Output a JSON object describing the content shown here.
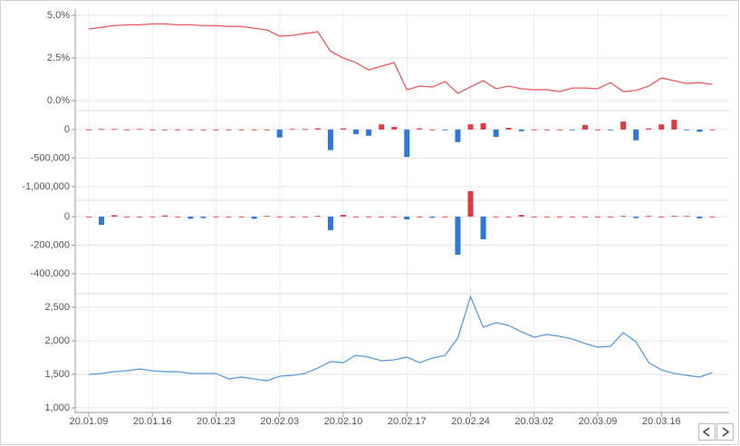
{
  "chart_data": [
    {
      "type": "line",
      "color": "#e8595c",
      "values": [
        4.2,
        4.3,
        4.4,
        4.45,
        4.45,
        4.5,
        4.5,
        4.45,
        4.45,
        4.4,
        4.4,
        4.35,
        4.35,
        4.25,
        4.15,
        3.78,
        3.83,
        3.94,
        4.04,
        2.9,
        2.5,
        2.23,
        1.8,
        2.02,
        2.23,
        0.64,
        0.85,
        0.8,
        1.12,
        0.43,
        0.8,
        1.17,
        0.7,
        0.85,
        0.7,
        0.64,
        0.64,
        0.53,
        0.74,
        0.74,
        0.7,
        1.06,
        0.53,
        0.6,
        0.85,
        1.33,
        1.17,
        1.0,
        1.06,
        0.95
      ],
      "ylim": [
        -0.5,
        5.0
      ],
      "yticks": [
        {
          "value": 0,
          "label": "0.0%"
        },
        {
          "value": 2.5,
          "label": "2.5%"
        },
        {
          "value": 5.0,
          "label": "5.0%"
        }
      ],
      "grid": true
    },
    {
      "type": "bar",
      "up_color": "#e03a3e",
      "down_color": "#2f78d6",
      "values": [
        0,
        10000,
        10000,
        0,
        10000,
        0,
        0,
        0,
        0,
        0,
        0,
        0,
        0,
        0,
        0,
        -140000,
        10000,
        10000,
        20000,
        -360000,
        20000,
        -80000,
        -110000,
        90000,
        45000,
        -480000,
        20000,
        0,
        -10000,
        -220000,
        90000,
        110000,
        -130000,
        30000,
        -30000,
        0,
        0,
        0,
        -10000,
        80000,
        0,
        -10000,
        140000,
        -190000,
        20000,
        90000,
        170000,
        -10000,
        -40000,
        0
      ],
      "ylim": [
        -1200000,
        300000
      ],
      "yticks": [
        {
          "value": -1000000,
          "label": "-1,000,000"
        },
        {
          "value": -500000,
          "label": "-500,000"
        },
        0
      ],
      "grid": true
    },
    {
      "type": "bar",
      "up_color": "#e03a3e",
      "down_color": "#2f78d6",
      "values": [
        0,
        -57000,
        10000,
        0,
        0,
        0,
        8000,
        0,
        -15000,
        -10000,
        0,
        0,
        0,
        -15000,
        5000,
        0,
        0,
        0,
        5000,
        -95000,
        12000,
        0,
        0,
        0,
        0,
        -20000,
        0,
        -8000,
        0,
        -267000,
        178000,
        -159000,
        0,
        0,
        12000,
        0,
        0,
        0,
        0,
        0,
        0,
        0,
        5000,
        -10000,
        5000,
        0,
        5000,
        5000,
        -12000,
        0
      ],
      "ylim": [
        -540000,
        200000
      ],
      "yticks": [
        {
          "value": -400000,
          "label": "-400,000"
        },
        {
          "value": -200000,
          "label": "-200,000"
        },
        0
      ],
      "grid": true
    },
    {
      "type": "line",
      "color": "#5b9bd8",
      "categories": [
        "20.01.09",
        null,
        null,
        null,
        null,
        "20.01.16",
        null,
        null,
        null,
        null,
        "20.01.23",
        null,
        null,
        null,
        null,
        "20.02.03",
        null,
        null,
        null,
        null,
        "20.02.10",
        null,
        null,
        null,
        null,
        "20.02.17",
        null,
        null,
        null,
        null,
        "20.02.24",
        null,
        null,
        null,
        null,
        "20.03.02",
        null,
        null,
        null,
        null,
        "20.03.09",
        null,
        null,
        null,
        null,
        "20.03.16",
        null,
        null,
        null,
        null
      ],
      "values": [
        1500,
        1514,
        1540,
        1554,
        1580,
        1554,
        1540,
        1540,
        1514,
        1514,
        1514,
        1432,
        1460,
        1432,
        1405,
        1473,
        1486,
        1514,
        1595,
        1690,
        1675,
        1784,
        1757,
        1703,
        1716,
        1757,
        1675,
        1743,
        1784,
        2040,
        2660,
        2203,
        2270,
        2230,
        2135,
        2054,
        2095,
        2068,
        2027,
        1960,
        1905,
        1919,
        2122,
        1986,
        1675,
        1568,
        1514,
        1486,
        1460,
        1527
      ],
      "ylim": [
        1000,
        2700
      ],
      "yticks": [
        {
          "value": 1000,
          "label": "1,000"
        },
        {
          "value": 1500,
          "label": "1,500"
        },
        {
          "value": 2000,
          "label": "2,000"
        },
        {
          "value": 2500,
          "label": "2,500"
        }
      ],
      "grid": true
    }
  ]
}
